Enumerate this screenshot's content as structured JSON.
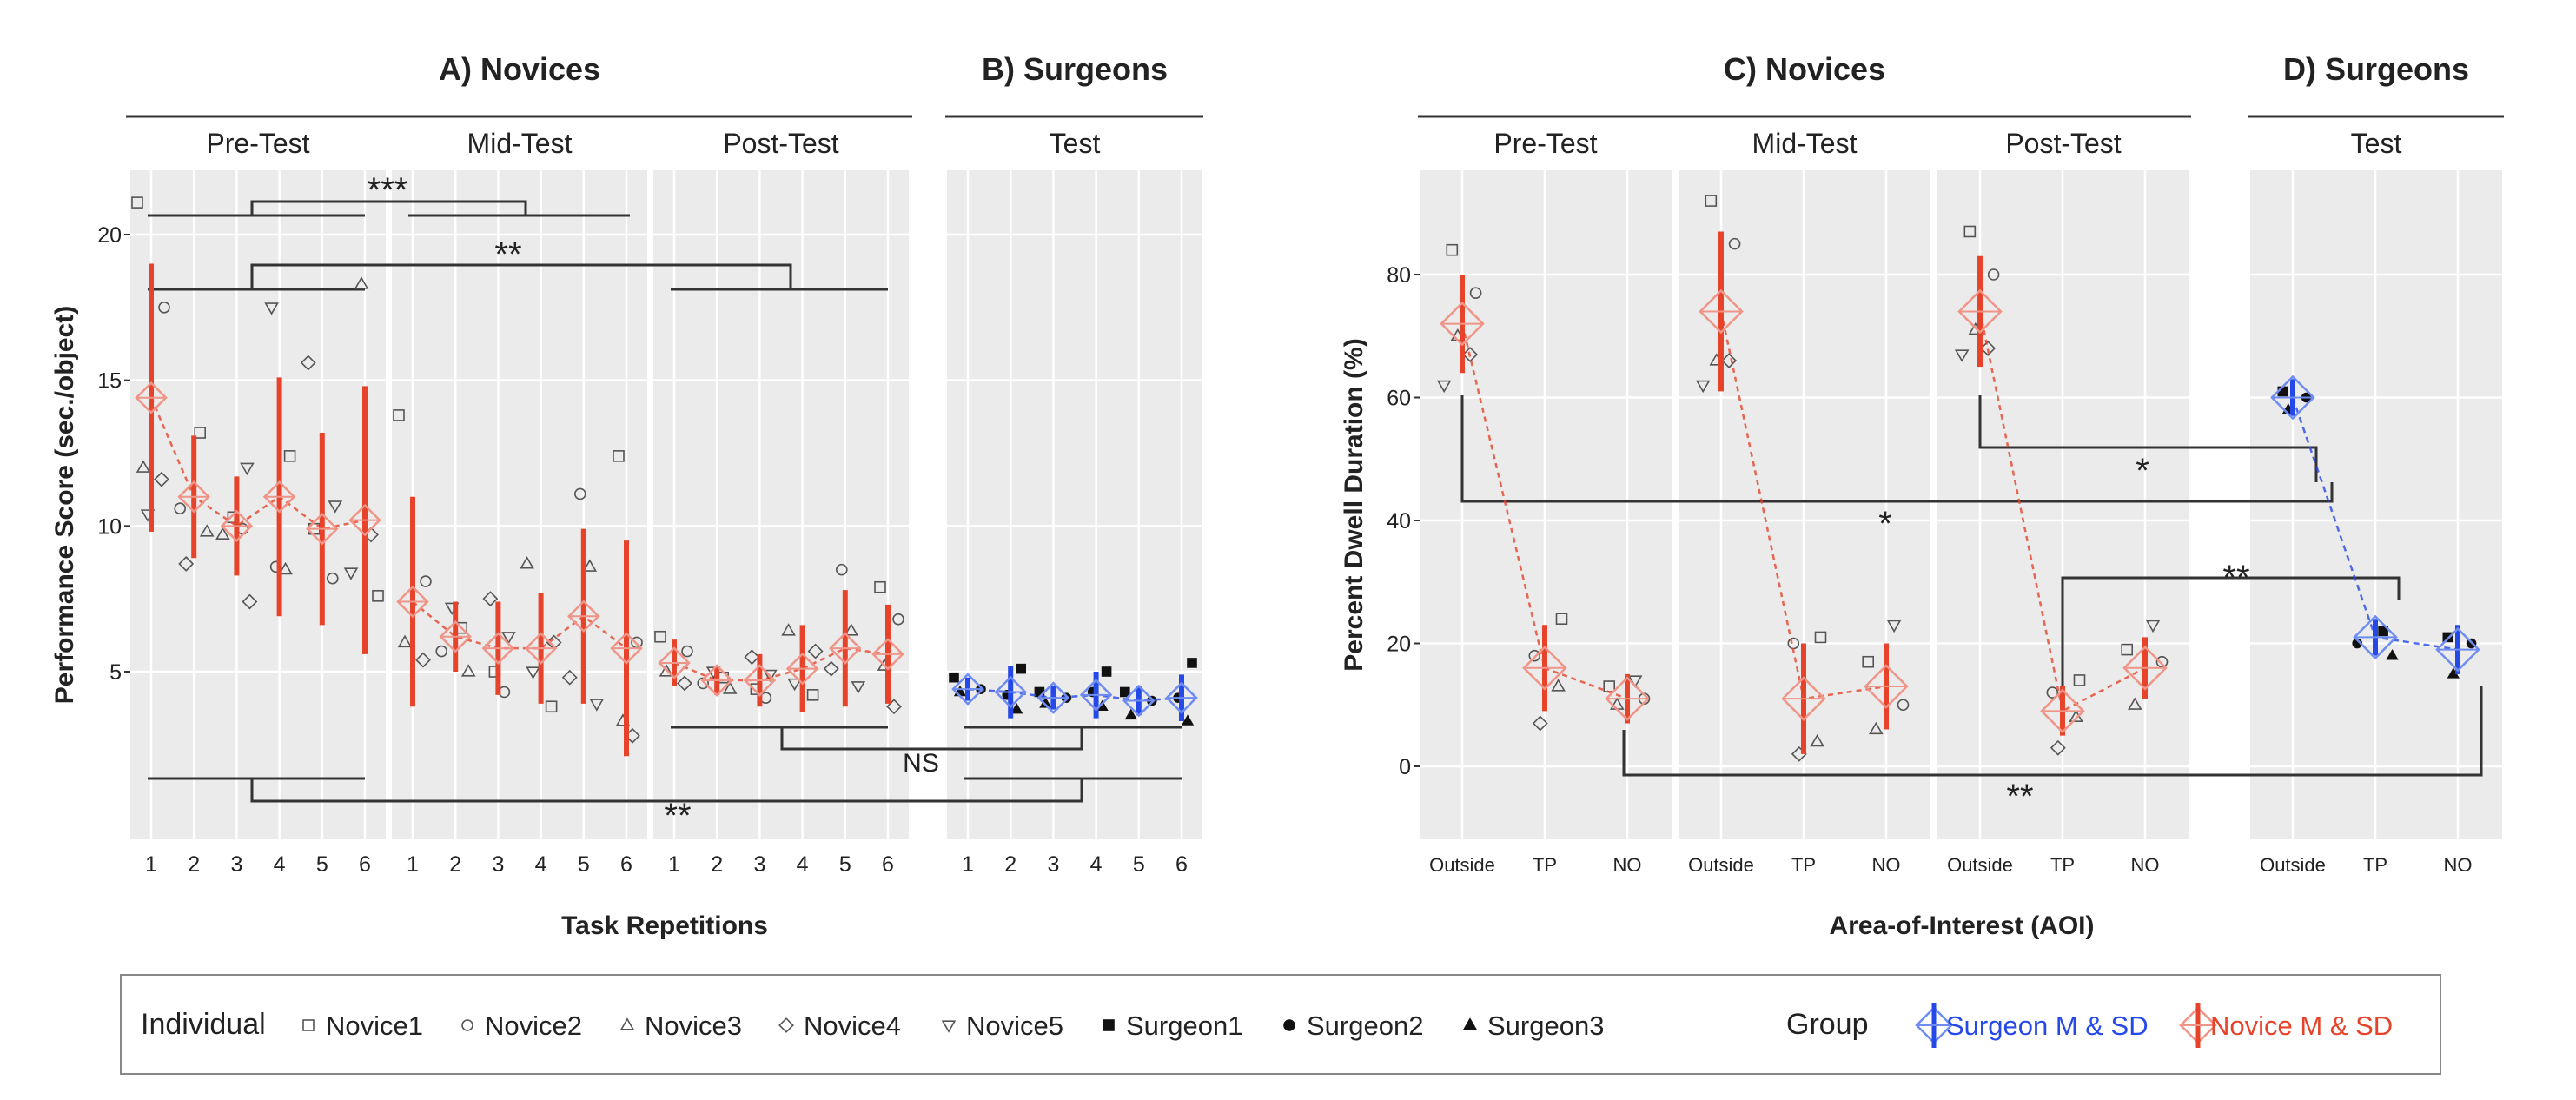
{
  "chart_data": [
    {
      "type": "scatter",
      "panels": [
        {
          "title": "A) Novices",
          "strips": [
            "Pre-Test",
            "Mid-Test",
            "Post-Test"
          ]
        },
        {
          "title": "B) Surgeons",
          "strips": [
            "Test"
          ]
        }
      ],
      "ylabel": "Performance Score (sec./object)",
      "xlabel": "Task Repetitions",
      "ylim": [
        0,
        22
      ],
      "yticks": [
        5,
        10,
        15,
        20
      ],
      "xtick_labels": [
        "1",
        "2",
        "3",
        "4",
        "5",
        "6"
      ],
      "series": [
        {
          "name": "Novice M & SD",
          "facet": "Pre-Test",
          "x": [
            1,
            2,
            3,
            4,
            5,
            6
          ],
          "mean": [
            14.4,
            11.0,
            10.0,
            11.0,
            9.9,
            10.2
          ],
          "sd": [
            4.6,
            2.1,
            1.7,
            4.1,
            3.3,
            4.6
          ]
        },
        {
          "name": "Novice M & SD",
          "facet": "Mid-Test",
          "x": [
            1,
            2,
            3,
            4,
            5,
            6
          ],
          "mean": [
            7.4,
            6.2,
            5.8,
            5.8,
            6.9,
            5.8
          ],
          "sd": [
            3.6,
            1.2,
            1.6,
            1.9,
            3.0,
            3.7
          ]
        },
        {
          "name": "Novice M & SD",
          "facet": "Post-Test",
          "x": [
            1,
            2,
            3,
            4,
            5,
            6
          ],
          "mean": [
            5.3,
            4.7,
            4.7,
            5.1,
            5.8,
            5.6
          ],
          "sd": [
            0.8,
            0.5,
            0.9,
            1.5,
            2.0,
            1.7
          ]
        },
        {
          "name": "Surgeon M & SD",
          "facet": "Test",
          "x": [
            1,
            2,
            3,
            4,
            5,
            6
          ],
          "mean": [
            4.4,
            4.3,
            4.1,
            4.2,
            4.0,
            4.1
          ],
          "sd": [
            0.4,
            0.9,
            0.4,
            0.8,
            0.5,
            0.8
          ]
        }
      ],
      "individual_points": [
        {
          "facet": "Pre-Test",
          "x": [
            1,
            1,
            1,
            1,
            1,
            2,
            2,
            2,
            2,
            3,
            3,
            3,
            3,
            3,
            4,
            4,
            4,
            4,
            5,
            5,
            5,
            5,
            6,
            6,
            6,
            6
          ],
          "y": [
            21.1,
            17.5,
            12.0,
            11.6,
            10.4,
            13.2,
            10.6,
            9.8,
            8.7,
            12.0,
            10.3,
            9.9,
            9.7,
            7.4,
            17.5,
            12.4,
            8.6,
            8.5,
            15.6,
            10.7,
            9.9,
            8.2,
            18.3,
            9.7,
            8.4,
            7.6
          ]
        },
        {
          "facet": "Mid-Test",
          "x": [
            1,
            1,
            1,
            1,
            2,
            2,
            2,
            2,
            3,
            3,
            3,
            3,
            4,
            4,
            4,
            4,
            5,
            5,
            5,
            5,
            6,
            6,
            6,
            6
          ],
          "y": [
            13.8,
            8.1,
            6.0,
            5.4,
            7.2,
            6.5,
            5.7,
            5.0,
            7.5,
            6.2,
            5.0,
            4.3,
            8.7,
            6.0,
            5.0,
            3.8,
            11.1,
            8.6,
            4.8,
            3.9,
            12.4,
            6.0,
            3.3,
            2.8
          ]
        },
        {
          "facet": "Post-Test",
          "x": [
            1,
            1,
            1,
            1,
            2,
            2,
            2,
            2,
            3,
            3,
            3,
            3,
            4,
            4,
            4,
            4,
            5,
            5,
            5,
            5,
            6,
            6,
            6,
            6
          ],
          "y": [
            6.2,
            5.7,
            5.0,
            4.6,
            5.0,
            4.8,
            4.6,
            4.4,
            5.5,
            4.9,
            4.4,
            4.1,
            6.4,
            5.7,
            4.6,
            4.2,
            8.5,
            6.4,
            5.1,
            4.5,
            7.9,
            6.8,
            5.2,
            3.8
          ]
        },
        {
          "facet": "Test",
          "x": [
            1,
            1,
            1,
            2,
            2,
            2,
            3,
            3,
            3,
            4,
            4,
            4,
            5,
            5,
            5,
            6,
            6,
            6
          ],
          "y": [
            4.8,
            4.4,
            4.3,
            5.1,
            4.2,
            3.7,
            4.3,
            4.1,
            3.9,
            5.0,
            4.3,
            3.8,
            4.3,
            4.0,
            3.5,
            5.3,
            4.1,
            3.3
          ]
        }
      ],
      "annotations": [
        "***",
        "**",
        "NS",
        "**"
      ]
    },
    {
      "type": "scatter",
      "panels": [
        {
          "title": "C) Novices",
          "strips": [
            "Pre-Test",
            "Mid-Test",
            "Post-Test"
          ]
        },
        {
          "title": "D) Surgeons",
          "strips": [
            "Test"
          ]
        }
      ],
      "ylabel": "Percent Dwell Duration (%)",
      "xlabel": "Area-of-Interest (AOI)",
      "ylim": [
        -14,
        97
      ],
      "yticks": [
        0,
        20,
        40,
        60,
        80
      ],
      "xtick_labels": [
        "Outside",
        "TP",
        "NO"
      ],
      "series": [
        {
          "name": "Novice M & SD",
          "facet": "Pre-Test",
          "categories": [
            "Outside",
            "TP",
            "NO"
          ],
          "mean": [
            72,
            16,
            11
          ],
          "sd": [
            8,
            7,
            4
          ]
        },
        {
          "name": "Novice M & SD",
          "facet": "Mid-Test",
          "categories": [
            "Outside",
            "TP",
            "NO"
          ],
          "mean": [
            74,
            11,
            13
          ],
          "sd": [
            13,
            9,
            7
          ]
        },
        {
          "name": "Novice M & SD",
          "facet": "Post-Test",
          "categories": [
            "Outside",
            "TP",
            "NO"
          ],
          "mean": [
            74,
            9,
            16
          ],
          "sd": [
            9,
            4,
            5
          ]
        },
        {
          "name": "Surgeon M & SD",
          "facet": "Test",
          "categories": [
            "Outside",
            "TP",
            "NO"
          ],
          "mean": [
            60,
            21,
            19
          ],
          "sd": [
            3,
            3,
            4
          ]
        }
      ],
      "individual_points": [
        {
          "facet": "Pre-Test",
          "x": [
            1,
            1,
            1,
            1,
            1,
            2,
            2,
            2,
            2,
            3,
            3,
            3,
            3
          ],
          "y": [
            84,
            77,
            70,
            67,
            62,
            24,
            18,
            13,
            7,
            14,
            13,
            11,
            10
          ]
        },
        {
          "facet": "Mid-Test",
          "x": [
            1,
            1,
            1,
            1,
            1,
            2,
            2,
            2,
            2,
            3,
            3,
            3,
            3
          ],
          "y": [
            92,
            85,
            66,
            66,
            62,
            21,
            20,
            4,
            2,
            23,
            17,
            10,
            6
          ]
        },
        {
          "facet": "Post-Test",
          "x": [
            1,
            1,
            1,
            1,
            1,
            2,
            2,
            2,
            2,
            3,
            3,
            3,
            3
          ],
          "y": [
            87,
            80,
            71,
            68,
            67,
            14,
            12,
            8,
            3,
            23,
            19,
            17,
            10
          ]
        },
        {
          "facet": "Test",
          "x": [
            1,
            1,
            1,
            2,
            2,
            2,
            3,
            3,
            3
          ],
          "y": [
            61,
            60,
            58,
            22,
            20,
            18,
            21,
            20,
            15
          ]
        }
      ],
      "annotations": [
        "*",
        "*",
        "**",
        "**"
      ]
    }
  ],
  "legend": {
    "individual_title": "Individual",
    "individual_items": [
      "Novice1",
      "Novice2",
      "Novice3",
      "Novice4",
      "Novice5",
      "Surgeon1",
      "Surgeon2",
      "Surgeon3"
    ],
    "group_title": "Group",
    "group_items": [
      "Surgeon M & SD",
      "Novice M & SD"
    ]
  },
  "colors": {
    "novice": "#e6432a",
    "surgeon": "#2549e8",
    "novice_diamond": "#f09487",
    "surgeon_diamond": "#6e8cf2",
    "panel_bg": "#ebebeb",
    "points": "#555555"
  }
}
